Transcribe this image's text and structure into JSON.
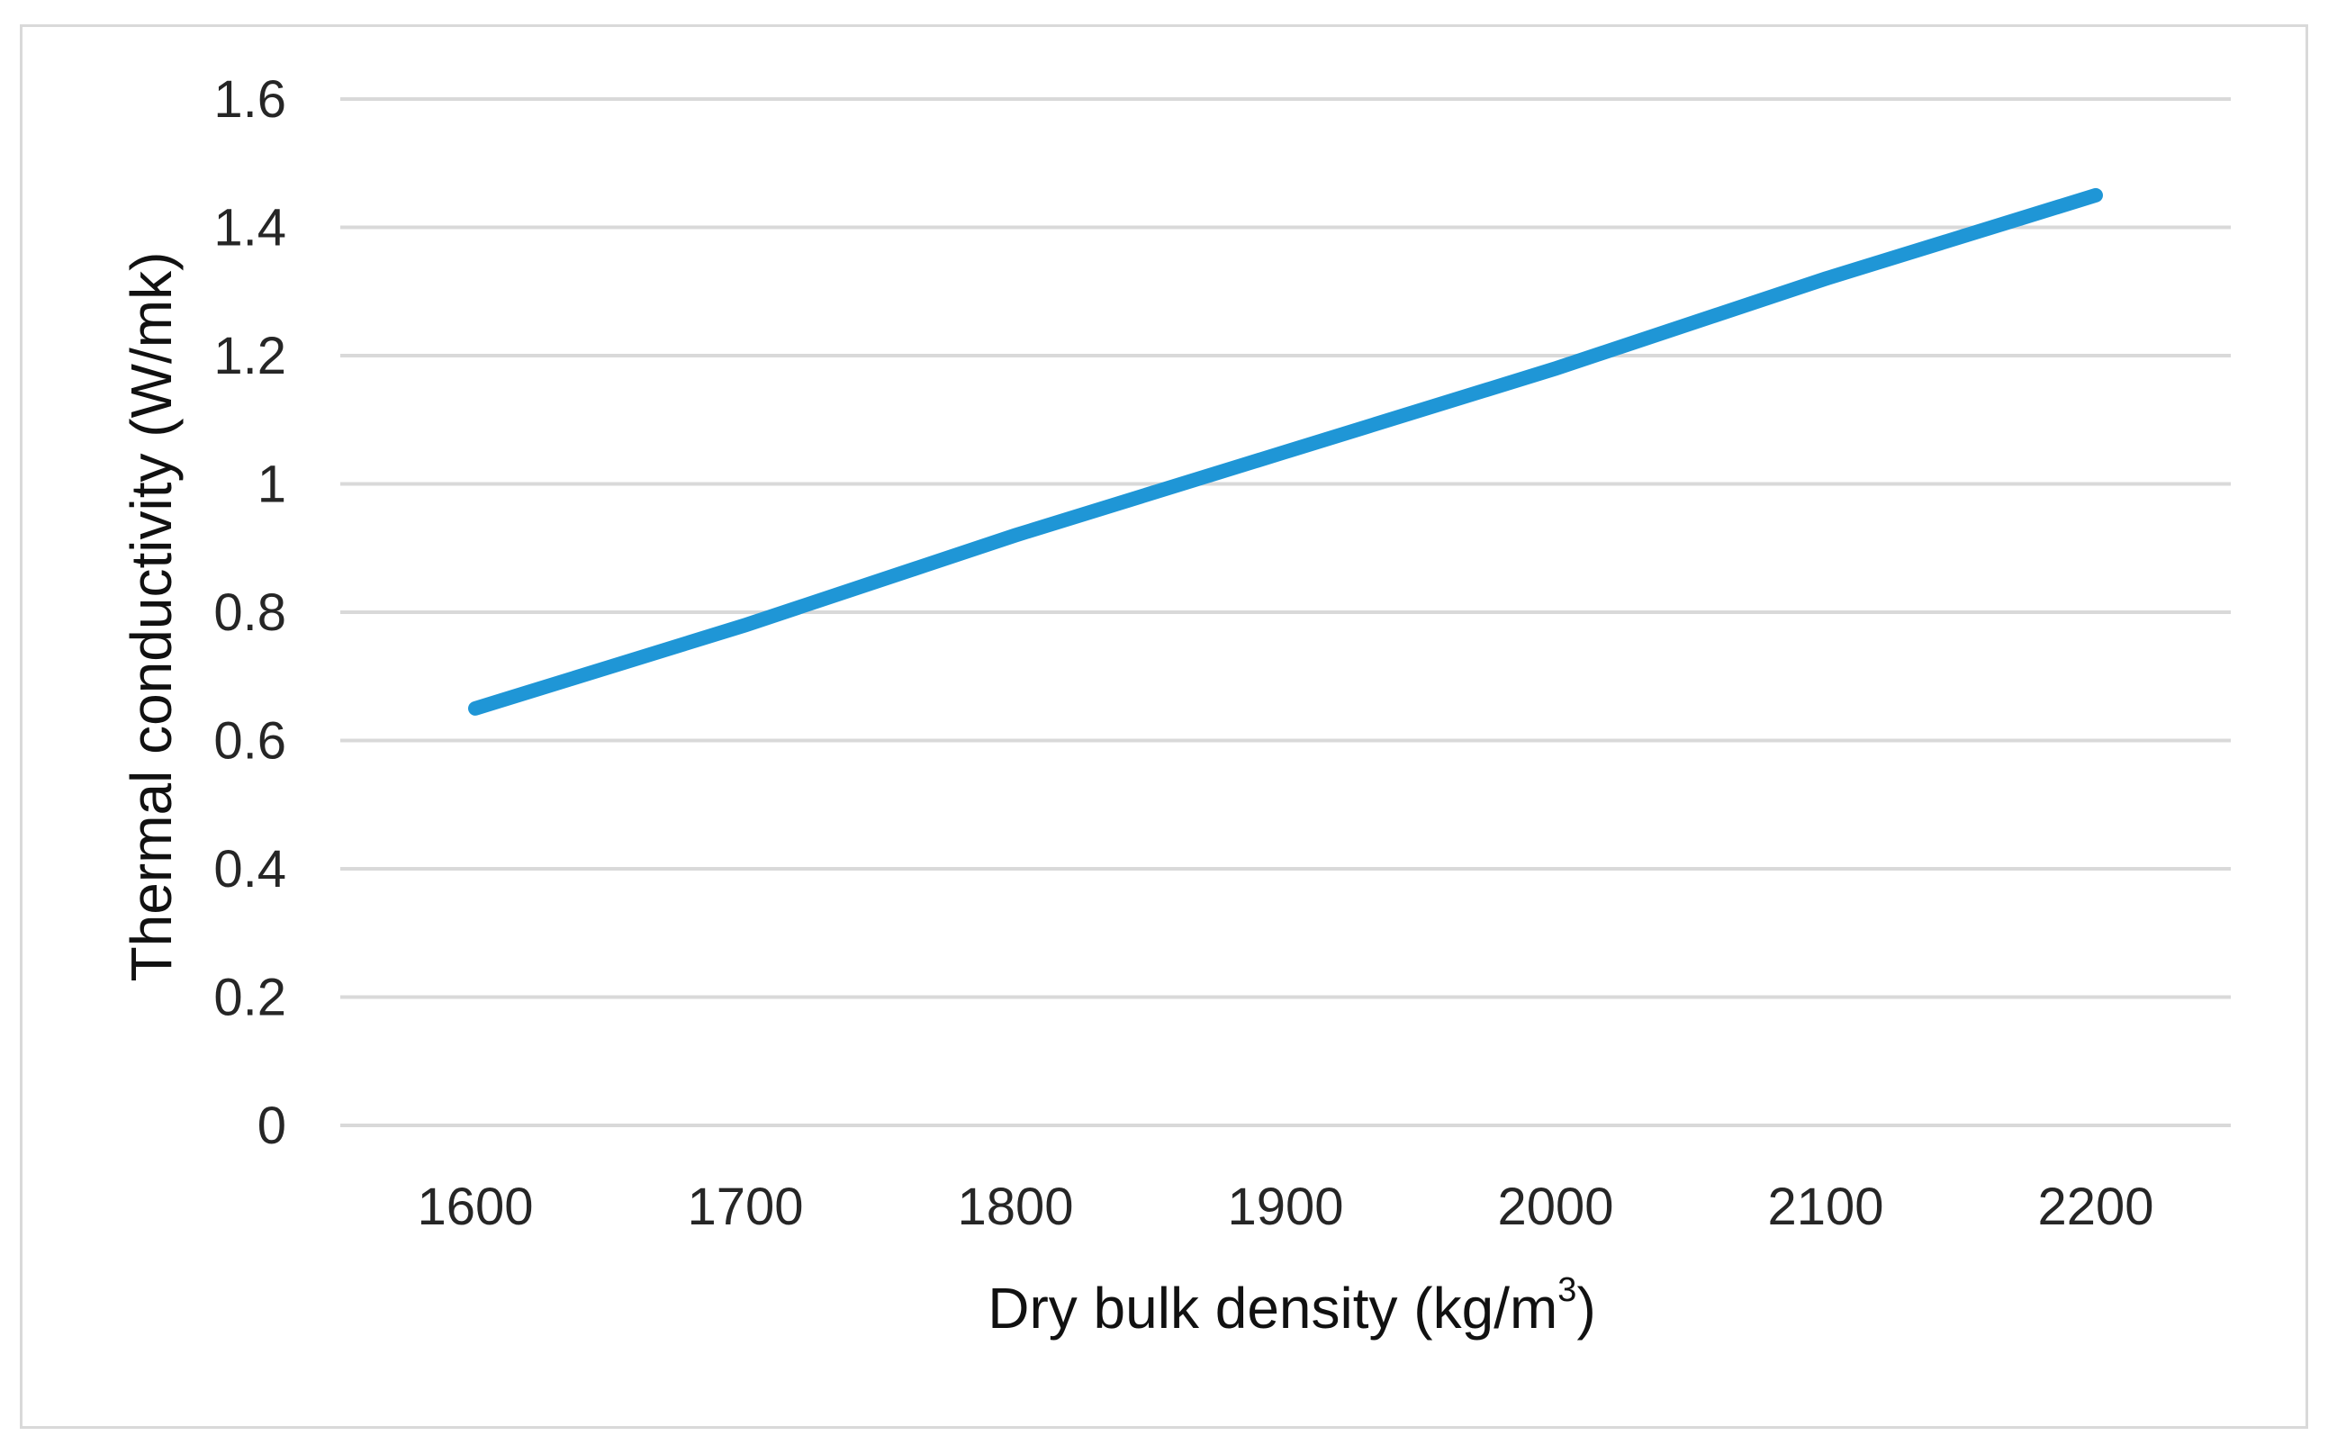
{
  "chart_data": {
    "type": "line",
    "title": "",
    "xlabel": "Dry bulk density (kg/m",
    "xlabel_sup": "3",
    "xlabel_end": ")",
    "ylabel": "Thermal conductivity (W/mk)",
    "xlim": [
      1550,
      2250
    ],
    "ylim": [
      0,
      1.6
    ],
    "x_ticks": [
      "1600",
      "1700",
      "1800",
      "1900",
      "2000",
      "2100",
      "2200"
    ],
    "y_ticks": [
      "0",
      "0.2",
      "0.4",
      "0.6",
      "0.8",
      "1",
      "1.2",
      "1.4",
      "1.6"
    ],
    "grid": true,
    "legend": "none",
    "series": [
      {
        "color": "#1f96d6",
        "x": [
          1600,
          1700,
          1800,
          1900,
          2000,
          2100,
          2200
        ],
        "y": [
          0.65,
          0.78,
          0.92,
          1.05,
          1.18,
          1.32,
          1.45
        ]
      }
    ]
  }
}
